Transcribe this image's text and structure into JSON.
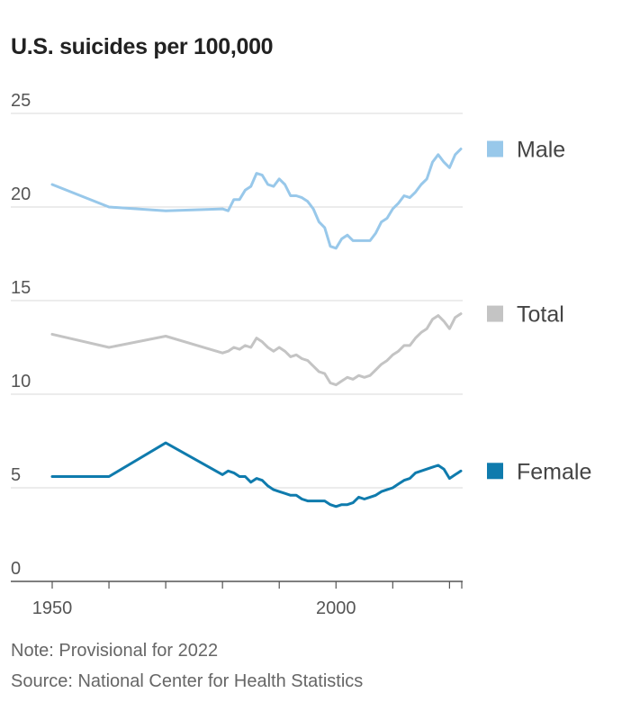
{
  "chart_data": {
    "type": "line",
    "title": "U.S. suicides per 100,000",
    "xlabel": "",
    "ylabel": "",
    "xlim": [
      1950,
      2022
    ],
    "ylim": [
      0,
      25
    ],
    "x_ticks": [
      1950,
      2000
    ],
    "y_ticks": [
      0,
      5,
      10,
      15,
      20,
      25
    ],
    "grid": true,
    "legend": "right, inline at series end",
    "series": [
      {
        "name": "Male",
        "color": "#98c8ea",
        "x": [
          1950,
          1960,
          1970,
          1980,
          1981,
          1982,
          1983,
          1984,
          1985,
          1986,
          1987,
          1988,
          1989,
          1990,
          1991,
          1992,
          1993,
          1994,
          1995,
          1996,
          1997,
          1998,
          1999,
          2000,
          2001,
          2002,
          2003,
          2004,
          2005,
          2006,
          2007,
          2008,
          2009,
          2010,
          2011,
          2012,
          2013,
          2014,
          2015,
          2016,
          2017,
          2018,
          2019,
          2020,
          2021,
          2022
        ],
        "values": [
          21.2,
          20.0,
          19.8,
          19.9,
          19.8,
          20.4,
          20.4,
          20.9,
          21.1,
          21.8,
          21.7,
          21.2,
          21.1,
          21.5,
          21.2,
          20.6,
          20.6,
          20.5,
          20.3,
          19.9,
          19.2,
          18.9,
          17.9,
          17.8,
          18.3,
          18.5,
          18.2,
          18.2,
          18.2,
          18.2,
          18.6,
          19.2,
          19.4,
          19.9,
          20.2,
          20.6,
          20.5,
          20.8,
          21.2,
          21.5,
          22.4,
          22.8,
          22.4,
          22.1,
          22.8,
          23.1
        ]
      },
      {
        "name": "Total",
        "color": "#c4c4c4",
        "x": [
          1950,
          1960,
          1970,
          1980,
          1981,
          1982,
          1983,
          1984,
          1985,
          1986,
          1987,
          1988,
          1989,
          1990,
          1991,
          1992,
          1993,
          1994,
          1995,
          1996,
          1997,
          1998,
          1999,
          2000,
          2001,
          2002,
          2003,
          2004,
          2005,
          2006,
          2007,
          2008,
          2009,
          2010,
          2011,
          2012,
          2013,
          2014,
          2015,
          2016,
          2017,
          2018,
          2019,
          2020,
          2021,
          2022
        ],
        "values": [
          13.2,
          12.5,
          13.1,
          12.2,
          12.3,
          12.5,
          12.4,
          12.6,
          12.5,
          13.0,
          12.8,
          12.5,
          12.3,
          12.5,
          12.3,
          12.0,
          12.1,
          11.9,
          11.8,
          11.5,
          11.2,
          11.1,
          10.6,
          10.5,
          10.7,
          10.9,
          10.8,
          11.0,
          10.9,
          11.0,
          11.3,
          11.6,
          11.8,
          12.1,
          12.3,
          12.6,
          12.6,
          13.0,
          13.3,
          13.5,
          14.0,
          14.2,
          13.9,
          13.5,
          14.1,
          14.3
        ]
      },
      {
        "name": "Female",
        "color": "#0f7bad",
        "x": [
          1950,
          1960,
          1970,
          1980,
          1981,
          1982,
          1983,
          1984,
          1985,
          1986,
          1987,
          1988,
          1989,
          1990,
          1991,
          1992,
          1993,
          1994,
          1995,
          1996,
          1997,
          1998,
          1999,
          2000,
          2001,
          2002,
          2003,
          2004,
          2005,
          2006,
          2007,
          2008,
          2009,
          2010,
          2011,
          2012,
          2013,
          2014,
          2015,
          2016,
          2017,
          2018,
          2019,
          2020,
          2021,
          2022
        ],
        "values": [
          5.6,
          5.6,
          7.4,
          5.7,
          5.9,
          5.8,
          5.6,
          5.6,
          5.3,
          5.5,
          5.4,
          5.1,
          4.9,
          4.8,
          4.7,
          4.6,
          4.6,
          4.4,
          4.3,
          4.3,
          4.3,
          4.3,
          4.1,
          4.0,
          4.1,
          4.1,
          4.2,
          4.5,
          4.4,
          4.5,
          4.6,
          4.8,
          4.9,
          5.0,
          5.2,
          5.4,
          5.5,
          5.8,
          5.9,
          6.0,
          6.1,
          6.2,
          6.0,
          5.5,
          5.7,
          5.9
        ]
      }
    ],
    "annotations": [
      "Note: Provisional for 2022",
      "Source: National Center for Health Statistics"
    ]
  }
}
